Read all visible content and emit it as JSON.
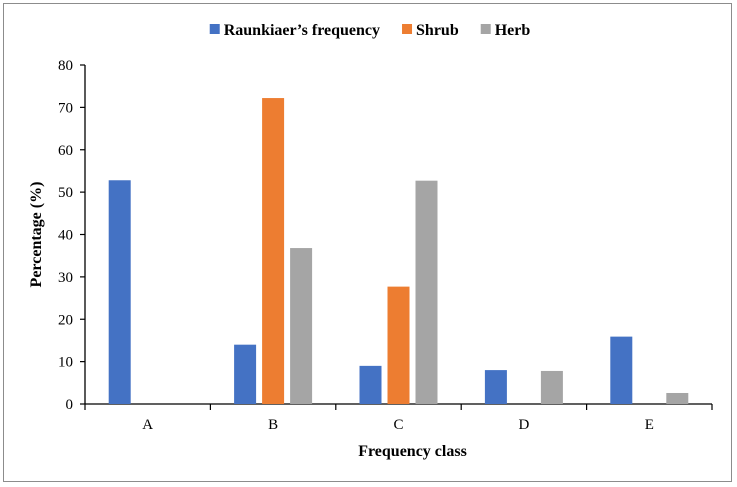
{
  "chart_data": {
    "type": "bar",
    "categories": [
      "A",
      "B",
      "C",
      "D",
      "E"
    ],
    "series": [
      {
        "name": "Raunkiaer’s frequency",
        "color": "#4472C4",
        "values": [
          52.8,
          14.0,
          9.0,
          8.0,
          15.9
        ]
      },
      {
        "name": "Shrub",
        "color": "#ED7D31",
        "values": [
          0,
          72.2,
          27.7,
          0,
          0
        ]
      },
      {
        "name": "Herb",
        "color": "#A5A5A5",
        "values": [
          0,
          36.8,
          52.7,
          7.8,
          2.6
        ]
      }
    ],
    "title": "",
    "xlabel": "Frequency class",
    "ylabel": "Percentage (%)",
    "ylim": [
      0,
      80
    ],
    "yticks": [
      0,
      10,
      20,
      30,
      40,
      50,
      60,
      70,
      80
    ],
    "grid": false,
    "legend": "top"
  }
}
